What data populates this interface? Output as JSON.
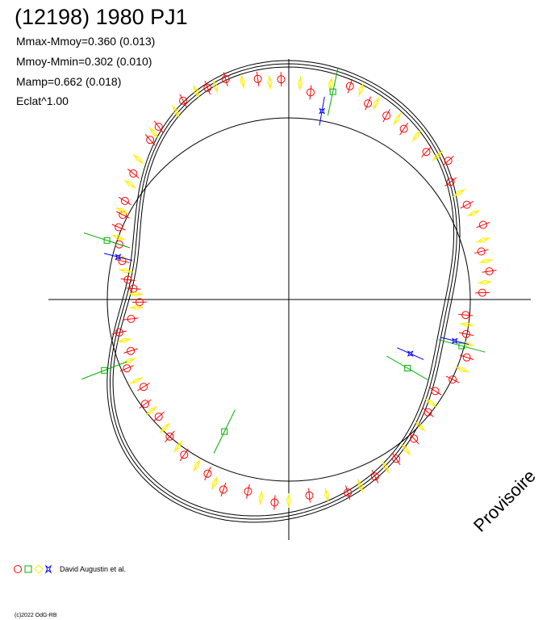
{
  "title": "(12198) 1980 PJ1",
  "stats": [
    "Mmax-Mmoy=0.360 (0.013)",
    "Mmoy-Mmin=0.302 (0.010)",
    "Mamp=0.662 (0.018)",
    "Eclat^1.00"
  ],
  "watermark": "Provisoire",
  "legend": {
    "observer": "David Augustin et al."
  },
  "copyright": "(c)2022 OdG-RB",
  "chart_data": {
    "type": "scatter",
    "projection": "polar",
    "reference_radius": 225,
    "fit_curve": {
      "mean": 245,
      "harmonics": [
        {
          "n": 1,
          "a": -8,
          "b": 7
        },
        {
          "n": 2,
          "a": -40,
          "b": 18
        },
        {
          "n": 3,
          "a": 6,
          "b": -5
        },
        {
          "n": 4,
          "a": -5,
          "b": 3
        }
      ],
      "band_offsets": [
        -4,
        4
      ]
    },
    "series": [
      {
        "marker": "circle",
        "color": "#ff0000",
        "points": [
          [
            92,
            273
          ],
          [
            98,
            276
          ],
          [
            106,
            284
          ],
          [
            111,
            281
          ],
          [
            118,
            279
          ],
          [
            127,
            268
          ],
          [
            131,
            262
          ],
          [
            141,
            248
          ],
          [
            149,
            237
          ],
          [
            153,
            231
          ],
          [
            157,
            229
          ],
          [
            162,
            221
          ],
          [
            167,
            212
          ],
          [
            173,
            201
          ],
          [
            176,
            193
          ],
          [
            181,
            185
          ],
          [
            187,
            197
          ],
          [
            191,
            214
          ],
          [
            198,
            206
          ],
          [
            203,
            218
          ],
          [
            211,
            210
          ],
          [
            216,
            220
          ],
          [
            222,
            217
          ],
          [
            229,
            225
          ],
          [
            236,
            232
          ],
          [
            245,
            238
          ],
          [
            251,
            249
          ],
          [
            258,
            243
          ],
          [
            266,
            252
          ],
          [
            276,
            244
          ],
          [
            287,
            250
          ],
          [
            296,
            244
          ],
          [
            304,
            238
          ],
          [
            312,
            232
          ],
          [
            321,
            222
          ],
          [
            328,
            214
          ],
          [
            334,
            226
          ],
          [
            342,
            232
          ],
          [
            349,
            224
          ],
          [
            355,
            220
          ],
          [
            2,
            240
          ],
          [
            8,
            251
          ],
          [
            14,
            246
          ],
          [
            21,
            258
          ],
          [
            28,
            250
          ],
          [
            36,
            248
          ],
          [
            41,
            262
          ],
          [
            47,
            250
          ],
          [
            56,
            255
          ],
          [
            62,
            258
          ],
          [
            68,
            262
          ],
          [
            74,
            275
          ],
          [
            84,
            258
          ]
        ]
      },
      {
        "marker": "diamond",
        "color": "#ffee00",
        "points": [
          [
            95,
            270
          ],
          [
            102,
            276
          ],
          [
            109,
            279
          ],
          [
            114,
            282
          ],
          [
            121,
            272
          ],
          [
            129,
            266
          ],
          [
            137,
            255
          ],
          [
            144,
            243
          ],
          [
            152,
            234
          ],
          [
            160,
            225
          ],
          [
            166,
            214
          ],
          [
            170,
            205
          ],
          [
            178,
            190
          ],
          [
            183,
            189
          ],
          [
            194,
            210
          ],
          [
            201,
            212
          ],
          [
            208,
            214
          ],
          [
            219,
            219
          ],
          [
            226,
            221
          ],
          [
            233,
            228
          ],
          [
            241,
            235
          ],
          [
            248,
            245
          ],
          [
            262,
            248
          ],
          [
            270,
            249
          ],
          [
            281,
            247
          ],
          [
            291,
            247
          ],
          [
            300,
            240
          ],
          [
            308,
            236
          ],
          [
            316,
            226
          ],
          [
            324,
            218
          ],
          [
            338,
            232
          ],
          [
            346,
            228
          ],
          [
            352,
            223
          ],
          [
            5,
            244
          ],
          [
            11,
            249
          ],
          [
            17,
            252
          ],
          [
            25,
            253
          ],
          [
            32,
            249
          ],
          [
            44,
            256
          ],
          [
            52,
            257
          ],
          [
            59,
            261
          ],
          [
            66,
            266
          ],
          [
            71,
            275
          ],
          [
            79,
            272
          ],
          [
            87,
            268
          ]
        ]
      },
      {
        "marker": "square",
        "color": "#00b000",
        "points": [
          [
            162,
            237
          ],
          [
            201,
            245
          ],
          [
            244,
            182
          ],
          [
            330,
            170
          ],
          [
            345,
            222
          ],
          [
            78,
            263
          ]
        ]
      },
      {
        "marker": "star",
        "color": "#0000ff",
        "points": [
          [
            166,
            218
          ],
          [
            336,
            165
          ],
          [
            346,
            212
          ],
          [
            80,
            237
          ]
        ]
      }
    ],
    "legend_placement": "bottom-left",
    "grid": false
  }
}
